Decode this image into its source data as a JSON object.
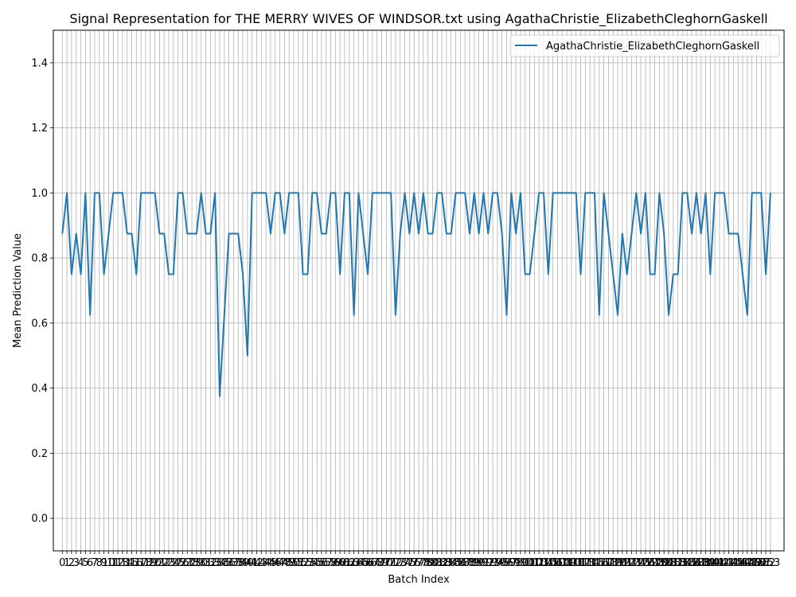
{
  "chart_data": {
    "type": "line",
    "title": "Signal Representation for THE MERRY WIVES OF WINDSOR.txt using AgathaChristie_ElizabethCleghornGaskell",
    "xlabel": "Batch Index",
    "ylabel": "Mean Prediction Value",
    "xlim": [
      -1.94,
      155.94
    ],
    "ylim": [
      -0.1,
      1.5
    ],
    "yticks": [
      0.0,
      0.2,
      0.4,
      0.6,
      0.8,
      1.0,
      1.2,
      1.4
    ],
    "xtick_start": 0,
    "xtick_end": 153,
    "grid": true,
    "legend_position": "upper right",
    "line_color": "#1f77b4",
    "series": [
      {
        "name": "AgathaChristie_ElizabethCleghornGaskell",
        "values": [
          0.875,
          1.0,
          0.75,
          0.875,
          0.75,
          1.0,
          0.625,
          1.0,
          1.0,
          0.75,
          0.875,
          1.0,
          1.0,
          1.0,
          0.875,
          0.875,
          0.75,
          1.0,
          1.0,
          1.0,
          1.0,
          0.875,
          0.875,
          0.75,
          0.75,
          1.0,
          1.0,
          0.875,
          0.875,
          0.875,
          1.0,
          0.875,
          0.875,
          1.0,
          0.375,
          0.625,
          0.875,
          0.875,
          0.875,
          0.75,
          0.5,
          1.0,
          1.0,
          1.0,
          1.0,
          0.875,
          1.0,
          1.0,
          0.875,
          1.0,
          1.0,
          1.0,
          0.75,
          0.75,
          1.0,
          1.0,
          0.875,
          0.875,
          1.0,
          1.0,
          0.75,
          1.0,
          1.0,
          0.625,
          1.0,
          0.875,
          0.75,
          1.0,
          1.0,
          1.0,
          1.0,
          1.0,
          0.625,
          0.875,
          1.0,
          0.875,
          1.0,
          0.875,
          1.0,
          0.875,
          0.875,
          1.0,
          1.0,
          0.875,
          0.875,
          1.0,
          1.0,
          1.0,
          0.875,
          1.0,
          0.875,
          1.0,
          0.875,
          1.0,
          1.0,
          0.875,
          0.625,
          1.0,
          0.875,
          1.0,
          0.75,
          0.75,
          0.875,
          1.0,
          1.0,
          0.75,
          1.0,
          1.0,
          1.0,
          1.0,
          1.0,
          1.0,
          0.75,
          1.0,
          1.0,
          1.0,
          0.625,
          1.0,
          0.875,
          0.75,
          0.625,
          0.875,
          0.75,
          0.875,
          1.0,
          0.875,
          1.0,
          0.75,
          0.75,
          1.0,
          0.875,
          0.625,
          0.75,
          0.75,
          1.0,
          1.0,
          0.875,
          1.0,
          0.875,
          1.0,
          0.75,
          1.0,
          1.0,
          1.0,
          0.875,
          0.875,
          0.875,
          0.75,
          0.625,
          1.0,
          1.0,
          1.0,
          0.75,
          1.0
        ]
      }
    ]
  }
}
